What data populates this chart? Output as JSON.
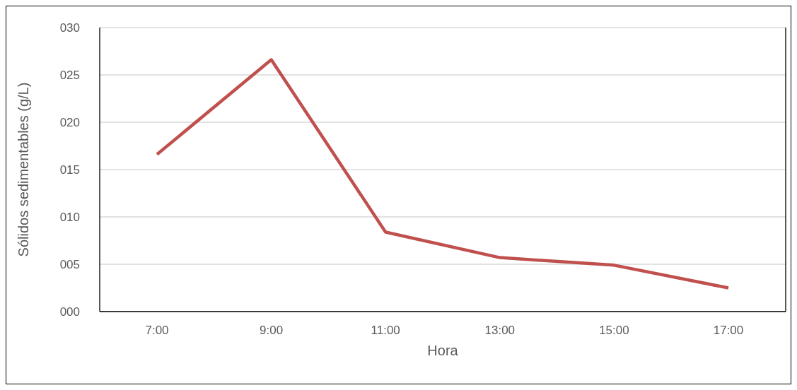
{
  "chart_data": {
    "type": "line",
    "xlabel": "Hora",
    "ylabel": "Sólidos sedimentables (g/L)",
    "categories": [
      "7:00",
      "9:00",
      "11:00",
      "13:00",
      "15:00",
      "17:00"
    ],
    "series": [
      {
        "color": "#c0504d",
        "values": [
          16.6,
          26.6,
          8.4,
          5.7,
          4.9,
          2.5
        ]
      }
    ],
    "ylim": [
      0,
      30
    ],
    "yticks": [
      {
        "value": 0,
        "label": "000"
      },
      {
        "value": 5,
        "label": "005"
      },
      {
        "value": 10,
        "label": "010"
      },
      {
        "value": 15,
        "label": "015"
      },
      {
        "value": 20,
        "label": "020"
      },
      {
        "value": 25,
        "label": "025"
      },
      {
        "value": 30,
        "label": "030"
      }
    ],
    "grid": "y",
    "legend": false,
    "marker": "none",
    "line_style": "solid"
  }
}
